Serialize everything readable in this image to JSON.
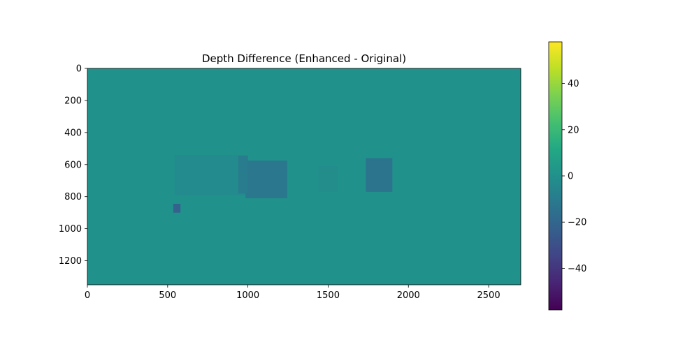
{
  "chart_data": {
    "type": "heatmap",
    "title": "Depth Difference (Enhanced - Original)",
    "xlabel": "",
    "ylabel": "",
    "xlim": [
      0,
      2700
    ],
    "ylim": [
      1350,
      0
    ],
    "x_ticks": [
      0,
      500,
      1000,
      1500,
      2000,
      2500
    ],
    "y_ticks": [
      0,
      200,
      400,
      600,
      800,
      1000,
      1200
    ],
    "colormap": "viridis",
    "background_value": 0,
    "colorbar": {
      "range": [
        -58,
        58
      ],
      "ticks": [
        40,
        20,
        0,
        -20,
        -40
      ],
      "tick_labels": [
        "40",
        "20",
        "0",
        "−20",
        "−40"
      ]
    },
    "regions": [
      {
        "name": "left-object-faint",
        "x": [
          545,
          1000
        ],
        "y": [
          540,
          790
        ],
        "value": -3
      },
      {
        "name": "left-object-block",
        "x": [
          985,
          1245
        ],
        "y": [
          575,
          810
        ],
        "value": -12
      },
      {
        "name": "left-object-edge",
        "x": [
          940,
          1000
        ],
        "y": [
          545,
          780
        ],
        "value": -10
      },
      {
        "name": "middle-faint-object",
        "x": [
          1440,
          1560
        ],
        "y": [
          610,
          770
        ],
        "value": -2
      },
      {
        "name": "right-object-block",
        "x": [
          1735,
          1900
        ],
        "y": [
          560,
          770
        ],
        "value": -14
      },
      {
        "name": "small-streak",
        "x": [
          535,
          580
        ],
        "y": [
          845,
          900
        ],
        "value": -22
      }
    ]
  }
}
